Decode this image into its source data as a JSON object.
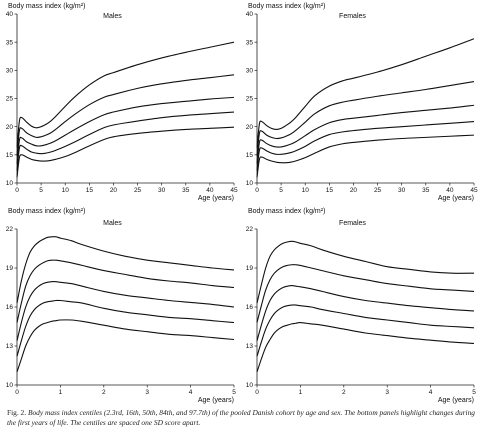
{
  "caption": {
    "figure_label": "Fig. 2.",
    "text": "Body mass index centiles (2.3rd, 16th, 50th, 84th, and 97.7th) of the pooled Danish cohort by age and sex. The bottom panels highlight changes during the first years of life. The centiles are spaced one SD score apart."
  },
  "chart_data": [
    {
      "type": "line",
      "title": "Males",
      "ylabel": "Body mass index (kg/m²)",
      "xlabel": "Age (years)",
      "xlim": [
        0,
        45
      ],
      "ylim": [
        10,
        40
      ],
      "xticks": [
        0,
        5,
        10,
        15,
        20,
        25,
        30,
        35,
        40,
        45
      ],
      "yticks": [
        10,
        15,
        20,
        25,
        30,
        35,
        40
      ],
      "x": [
        0,
        0.5,
        1,
        2,
        3,
        4,
        5,
        6,
        7,
        8,
        10,
        12,
        15,
        18,
        20,
        25,
        30,
        35,
        40,
        45
      ],
      "series": [
        {
          "values": [
            11.0,
            14.5,
            15.0,
            14.6,
            14.2,
            14.0,
            13.9,
            13.9,
            14.0,
            14.2,
            14.7,
            15.4,
            16.6,
            17.7,
            18.2,
            18.8,
            19.2,
            19.5,
            19.7,
            19.9
          ]
        },
        {
          "values": [
            12.2,
            16.2,
            16.6,
            16.0,
            15.5,
            15.3,
            15.2,
            15.3,
            15.5,
            15.8,
            16.5,
            17.3,
            18.6,
            19.8,
            20.3,
            21.0,
            21.6,
            22.0,
            22.3,
            22.6
          ]
        },
        {
          "values": [
            13.4,
            17.6,
            18.0,
            17.3,
            16.9,
            16.6,
            16.6,
            16.8,
            17.1,
            17.5,
            18.5,
            19.5,
            20.9,
            22.1,
            22.6,
            23.5,
            24.1,
            24.5,
            24.9,
            25.2
          ]
        },
        {
          "values": [
            14.8,
            19.3,
            19.7,
            18.9,
            18.4,
            18.1,
            18.2,
            18.5,
            18.9,
            19.5,
            20.9,
            22.2,
            23.9,
            25.2,
            25.7,
            26.8,
            27.6,
            28.2,
            28.7,
            29.2
          ]
        },
        {
          "values": [
            16.3,
            21.0,
            21.6,
            20.8,
            20.1,
            19.8,
            20.0,
            20.4,
            21.0,
            21.8,
            23.6,
            25.3,
            27.4,
            29.0,
            29.6,
            31.0,
            32.2,
            33.2,
            34.1,
            35.0
          ]
        }
      ]
    },
    {
      "type": "line",
      "title": "Females",
      "ylabel": "Body mass index (kg/m²)",
      "xlabel": "Age (years)",
      "xlim": [
        0,
        45
      ],
      "ylim": [
        10,
        40
      ],
      "xticks": [
        0,
        5,
        10,
        15,
        20,
        25,
        30,
        35,
        40,
        45
      ],
      "yticks": [
        10,
        15,
        20,
        25,
        30,
        35,
        40
      ],
      "x": [
        0,
        0.5,
        1,
        2,
        3,
        4,
        5,
        6,
        7,
        8,
        10,
        12,
        15,
        18,
        20,
        25,
        30,
        35,
        40,
        45
      ],
      "series": [
        {
          "values": [
            11.0,
            14.2,
            14.6,
            14.2,
            13.9,
            13.7,
            13.6,
            13.6,
            13.7,
            13.9,
            14.5,
            15.3,
            16.4,
            17.0,
            17.2,
            17.6,
            17.9,
            18.1,
            18.3,
            18.5
          ]
        },
        {
          "values": [
            12.2,
            15.8,
            16.2,
            15.7,
            15.3,
            15.1,
            15.1,
            15.2,
            15.4,
            15.7,
            16.5,
            17.5,
            18.6,
            19.1,
            19.3,
            19.7,
            20.0,
            20.3,
            20.6,
            20.9
          ]
        },
        {
          "values": [
            13.4,
            17.2,
            17.6,
            17.0,
            16.6,
            16.4,
            16.4,
            16.6,
            16.9,
            17.3,
            18.4,
            19.5,
            20.7,
            21.3,
            21.5,
            22.0,
            22.5,
            22.9,
            23.3,
            23.8
          ]
        },
        {
          "values": [
            14.8,
            18.8,
            19.2,
            18.5,
            18.1,
            17.9,
            18.0,
            18.3,
            18.7,
            19.3,
            20.8,
            22.3,
            23.7,
            24.4,
            24.7,
            25.4,
            26.0,
            26.6,
            27.3,
            28.0
          ]
        },
        {
          "values": [
            16.3,
            20.5,
            20.9,
            20.2,
            19.7,
            19.5,
            19.7,
            20.2,
            20.8,
            21.6,
            23.6,
            25.5,
            27.2,
            28.2,
            28.6,
            29.7,
            31.0,
            32.5,
            34.0,
            35.6
          ]
        }
      ]
    },
    {
      "type": "line",
      "title": "Males",
      "ylabel": "Body mass index (kg/m²)",
      "xlabel": "Age (years)",
      "xlim": [
        0,
        5
      ],
      "ylim": [
        10,
        22
      ],
      "xticks": [
        0,
        1,
        2,
        3,
        4,
        5
      ],
      "yticks": [
        10,
        13,
        16,
        19,
        22
      ],
      "x": [
        0,
        0.1,
        0.2,
        0.3,
        0.4,
        0.5,
        0.6,
        0.7,
        0.8,
        0.9,
        1,
        1.25,
        1.5,
        2,
        2.5,
        3,
        3.5,
        4,
        4.5,
        5
      ],
      "series": [
        {
          "values": [
            11.0,
            12.0,
            13.0,
            13.7,
            14.2,
            14.5,
            14.7,
            14.8,
            14.9,
            14.95,
            15.0,
            15.0,
            14.9,
            14.6,
            14.3,
            14.1,
            13.9,
            13.8,
            13.65,
            13.5
          ]
        },
        {
          "values": [
            12.2,
            13.4,
            14.5,
            15.3,
            15.8,
            16.1,
            16.3,
            16.4,
            16.45,
            16.5,
            16.5,
            16.4,
            16.3,
            15.9,
            15.6,
            15.4,
            15.2,
            15.1,
            14.95,
            14.8
          ]
        },
        {
          "values": [
            13.4,
            14.8,
            16.0,
            16.8,
            17.3,
            17.6,
            17.8,
            17.9,
            17.95,
            17.95,
            17.9,
            17.8,
            17.6,
            17.2,
            16.9,
            16.7,
            16.5,
            16.35,
            16.2,
            16.0
          ]
        },
        {
          "values": [
            14.8,
            16.3,
            17.6,
            18.4,
            18.9,
            19.2,
            19.4,
            19.55,
            19.6,
            19.6,
            19.55,
            19.4,
            19.2,
            18.8,
            18.5,
            18.2,
            18.0,
            17.85,
            17.65,
            17.5
          ]
        },
        {
          "values": [
            16.3,
            18.0,
            19.3,
            20.2,
            20.7,
            21.0,
            21.2,
            21.35,
            21.4,
            21.4,
            21.3,
            21.1,
            20.8,
            20.3,
            19.9,
            19.6,
            19.4,
            19.2,
            19.0,
            18.85
          ]
        }
      ]
    },
    {
      "type": "line",
      "title": "Females",
      "ylabel": "Body mass index (kg/m²)",
      "xlabel": "Age (years)",
      "xlim": [
        0,
        5
      ],
      "ylim": [
        10,
        22
      ],
      "xticks": [
        0,
        1,
        2,
        3,
        4,
        5
      ],
      "yticks": [
        10,
        13,
        16,
        19,
        22
      ],
      "x": [
        0,
        0.1,
        0.2,
        0.3,
        0.4,
        0.5,
        0.6,
        0.7,
        0.8,
        0.9,
        1,
        1.25,
        1.5,
        2,
        2.5,
        3,
        3.5,
        4,
        4.5,
        5
      ],
      "series": [
        {
          "values": [
            11.0,
            12.0,
            12.9,
            13.5,
            14.0,
            14.3,
            14.5,
            14.6,
            14.7,
            14.75,
            14.8,
            14.7,
            14.6,
            14.3,
            14.0,
            13.8,
            13.6,
            13.45,
            13.3,
            13.2
          ]
        },
        {
          "values": [
            12.2,
            13.3,
            14.3,
            15.0,
            15.5,
            15.8,
            16.0,
            16.1,
            16.15,
            16.15,
            16.1,
            16.0,
            15.8,
            15.5,
            15.2,
            15.0,
            14.8,
            14.6,
            14.5,
            14.4
          ]
        },
        {
          "values": [
            13.4,
            14.6,
            15.7,
            16.5,
            17.0,
            17.3,
            17.5,
            17.6,
            17.65,
            17.6,
            17.55,
            17.4,
            17.2,
            16.8,
            16.5,
            16.3,
            16.1,
            15.95,
            15.8,
            15.7
          ]
        },
        {
          "values": [
            14.8,
            16.1,
            17.3,
            18.1,
            18.6,
            18.9,
            19.1,
            19.2,
            19.25,
            19.25,
            19.2,
            19.0,
            18.8,
            18.4,
            18.1,
            17.8,
            17.6,
            17.4,
            17.3,
            17.2
          ]
        },
        {
          "values": [
            16.3,
            17.7,
            19.0,
            19.9,
            20.4,
            20.7,
            20.9,
            21.0,
            21.05,
            21.0,
            20.9,
            20.7,
            20.4,
            19.9,
            19.5,
            19.1,
            18.9,
            18.7,
            18.6,
            18.6
          ]
        }
      ]
    }
  ]
}
